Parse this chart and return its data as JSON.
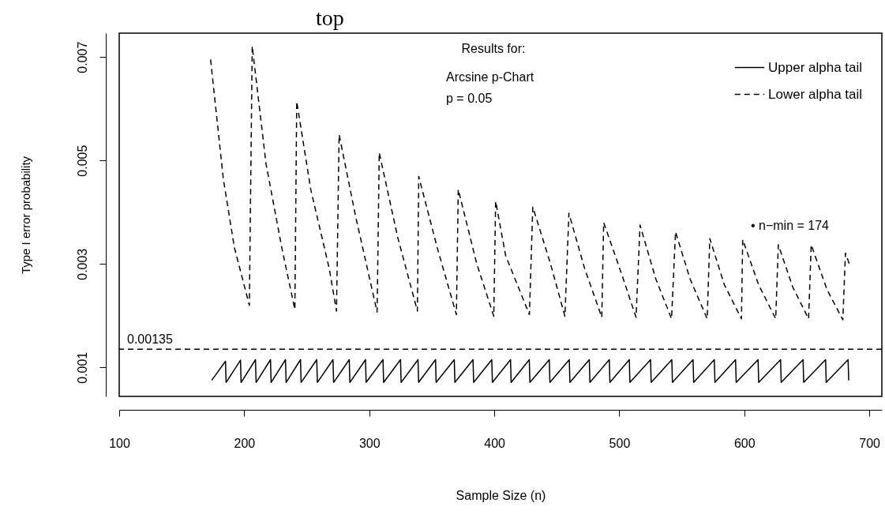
{
  "chart_data": {
    "type": "line",
    "title": "top",
    "xlabel": "Sample Size (n)",
    "ylabel": "Type I error probability",
    "xlim": [
      100,
      710
    ],
    "ylim": [
      0.00044,
      0.00746
    ],
    "xticks": [
      100,
      200,
      300,
      400,
      500,
      600,
      700
    ],
    "yticks": [
      0.001,
      0.003,
      0.005,
      0.007
    ],
    "grid": false,
    "legend": "top right",
    "series": [
      {
        "name": "Upper alpha tail",
        "color": "#000000",
        "line_style": "solid",
        "x": [
          174,
          185,
          185.5,
          197,
          197.5,
          209,
          209.5,
          221,
          221.5,
          233,
          233.5,
          245,
          245.5,
          258,
          258.5,
          271,
          271.5,
          284,
          284.5,
          297,
          297.5,
          311,
          311.5,
          325,
          325.5,
          339,
          339.5,
          353,
          353.5,
          368,
          368.5,
          383,
          383.5,
          398,
          398.5,
          413,
          413.5,
          428,
          428.5,
          444,
          444.5,
          460,
          460.5,
          476,
          476.5,
          492,
          492.5,
          508,
          508.5,
          525,
          525.5,
          542,
          542.5,
          559,
          559.5,
          576,
          576.5,
          593,
          593.5,
          611,
          611.5,
          629,
          629.5,
          647,
          647.5,
          665,
          665.5,
          683,
          683.5
        ],
        "values": [
          0.00075,
          0.00112,
          0.00071,
          0.00114,
          0.00071,
          0.00115,
          0.00071,
          0.00115,
          0.00071,
          0.00115,
          0.00071,
          0.00115,
          0.00071,
          0.00115,
          0.00071,
          0.00115,
          0.00071,
          0.00115,
          0.00071,
          0.00115,
          0.00071,
          0.00115,
          0.00071,
          0.00115,
          0.00071,
          0.00115,
          0.00071,
          0.00115,
          0.00071,
          0.00115,
          0.00071,
          0.00115,
          0.00071,
          0.00115,
          0.00071,
          0.00115,
          0.00071,
          0.00115,
          0.00071,
          0.00115,
          0.00071,
          0.00115,
          0.00071,
          0.00115,
          0.00071,
          0.00115,
          0.00071,
          0.00115,
          0.00071,
          0.00115,
          0.00071,
          0.00115,
          0.00071,
          0.00115,
          0.00071,
          0.00115,
          0.00071,
          0.00115,
          0.00071,
          0.00115,
          0.00071,
          0.00115,
          0.00071,
          0.00115,
          0.00071,
          0.00115,
          0.00071,
          0.00115,
          0.00075
        ]
      },
      {
        "name": "Lower alpha tail",
        "color": "#000000",
        "line_style": "dashed",
        "x": [
          173.1,
          183.3,
          192.1,
          204.1,
          206.4,
          217.4,
          230,
          240.5,
          242,
          253.2,
          268,
          273.8,
          275.9,
          289,
          306.3,
          308,
          322.7,
          338.5,
          339.6,
          354.3,
          369.7,
          371.2,
          385.9,
          399.6,
          401.1,
          409.1,
          428.1,
          430.8,
          444.9,
          456.5,
          459.7,
          472.3,
          486,
          487.5,
          501.8,
          513.4,
          516.6,
          529.2,
          541.8,
          545,
          556.6,
          570.3,
          572.4,
          584,
          597.7,
          598.7,
          611.4,
          625.1,
          627.2,
          638.8,
          651.4,
          653.5,
          666.2,
          678.8,
          680.9,
          684
        ],
        "values": [
          0.00695,
          0.00464,
          0.00332,
          0.0022,
          0.00721,
          0.00494,
          0.00332,
          0.00212,
          0.00614,
          0.00444,
          0.00291,
          0.00209,
          0.0055,
          0.00393,
          0.00207,
          0.00515,
          0.00352,
          0.00209,
          0.00469,
          0.00332,
          0.00202,
          0.00444,
          0.00301,
          0.00199,
          0.00421,
          0.00316,
          0.00202,
          0.0041,
          0.00301,
          0.00199,
          0.00398,
          0.00291,
          0.00197,
          0.0038,
          0.00281,
          0.00197,
          0.00375,
          0.00271,
          0.00194,
          0.00362,
          0.00271,
          0.00194,
          0.00349,
          0.0026,
          0.00194,
          0.00347,
          0.0026,
          0.00194,
          0.00337,
          0.00255,
          0.00194,
          0.00337,
          0.0025,
          0.00192,
          0.00321,
          0.003
        ]
      }
    ],
    "ref_lines": [
      {
        "axis": "y",
        "value": 0.00135,
        "label": "0.00135",
        "line_style": "dashed",
        "color": "#000000"
      }
    ],
    "annotations": [
      "Results for:",
      "Arcsine p-Chart",
      "p = 0.05",
      "•  n−min = 174"
    ]
  }
}
